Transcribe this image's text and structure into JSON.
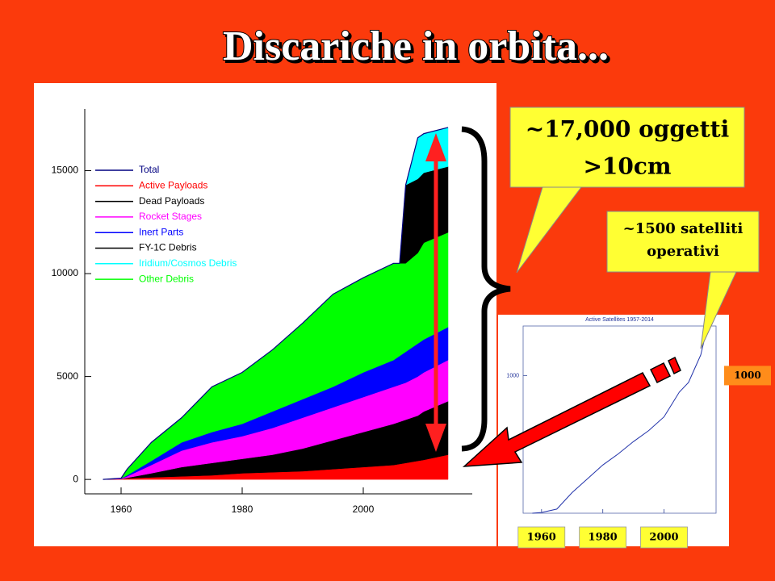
{
  "title": "Discariche in orbita...",
  "chart_data": [
    {
      "type": "area",
      "x": [
        1957,
        1960,
        1961,
        1965,
        1970,
        1975,
        1980,
        1985,
        1990,
        1995,
        2000,
        2005,
        2006,
        2007,
        2009,
        2010,
        2014
      ],
      "series": [
        {
          "name": "Total",
          "color": "#000080",
          "line": true,
          "values": [
            0,
            60,
            500,
            1800,
            3000,
            4500,
            5200,
            6300,
            7600,
            9000,
            9800,
            10500,
            10500,
            14300,
            16600,
            16800,
            17100
          ]
        },
        {
          "name": "Active  Payloads",
          "color": "#ff0000",
          "values": [
            0,
            20,
            50,
            100,
            150,
            200,
            300,
            350,
            400,
            500,
            600,
            700,
            750,
            800,
            900,
            950,
            1200
          ]
        },
        {
          "name": "Dead  Payloads",
          "color": "#000000",
          "values": [
            0,
            0,
            30,
            200,
            450,
            600,
            700,
            850,
            1100,
            1400,
            1700,
            2000,
            2050,
            2100,
            2200,
            2350,
            2600
          ]
        },
        {
          "name": "Rocket  Stages",
          "color": "#ff00ff",
          "values": [
            0,
            20,
            70,
            400,
            800,
            1000,
            1100,
            1300,
            1500,
            1600,
            1700,
            1800,
            1800,
            1800,
            1900,
            1900,
            2000
          ]
        },
        {
          "name": "Inert  Parts",
          "color": "#0000ff",
          "values": [
            0,
            10,
            50,
            200,
            400,
            500,
            600,
            800,
            900,
            1000,
            1200,
            1300,
            1400,
            1500,
            1600,
            1600,
            1600
          ]
        },
        {
          "name": "FY-1C  Debris",
          "color": "#000000",
          "values": [
            0,
            0,
            0,
            0,
            0,
            0,
            0,
            0,
            0,
            0,
            0,
            0,
            0,
            3800,
            3600,
            3400,
            3200
          ]
        },
        {
          "name": "Iridium/Cosmos  Debris",
          "color": "#00ffff",
          "values": [
            0,
            0,
            0,
            0,
            0,
            0,
            0,
            0,
            0,
            0,
            0,
            0,
            0,
            0,
            2000,
            1900,
            1900
          ]
        },
        {
          "name": "Other  Debris",
          "color": "#00ff00",
          "values": [
            0,
            10,
            300,
            900,
            1200,
            2200,
            2500,
            3000,
            3700,
            4500,
            4600,
            4700,
            4500,
            4300,
            4400,
            4700,
            4600
          ]
        }
      ],
      "stack_order": [
        1,
        2,
        3,
        4,
        7,
        5,
        6
      ],
      "legend": "upper left",
      "xlim": [
        1954,
        2018
      ],
      "ylim": [
        -700,
        18000
      ],
      "xticks": [
        1960,
        1980,
        2000
      ],
      "yticks": [
        0,
        5000,
        10000,
        15000
      ]
    },
    {
      "type": "line",
      "title": "Active Satellites 1957-2014",
      "color": "#2233aa",
      "x": [
        1957,
        1960,
        1965,
        1970,
        1975,
        1980,
        1985,
        1990,
        1995,
        2000,
        2005,
        2008,
        2010,
        2012,
        2014
      ],
      "values": [
        0,
        5,
        30,
        150,
        250,
        350,
        430,
        520,
        600,
        700,
        880,
        950,
        1050,
        1150,
        1340
      ],
      "xlim": [
        1954,
        2017
      ],
      "ylim": [
        0,
        1360
      ],
      "xticks": [
        1960,
        1980,
        2000
      ],
      "yticks": [
        1000
      ]
    }
  ],
  "callouts": [
    {
      "lines": [
        "~17,000 oggetti",
        ">10cm"
      ]
    },
    {
      "lines": [
        "~1500 satelliti",
        "operativi"
      ]
    }
  ]
}
